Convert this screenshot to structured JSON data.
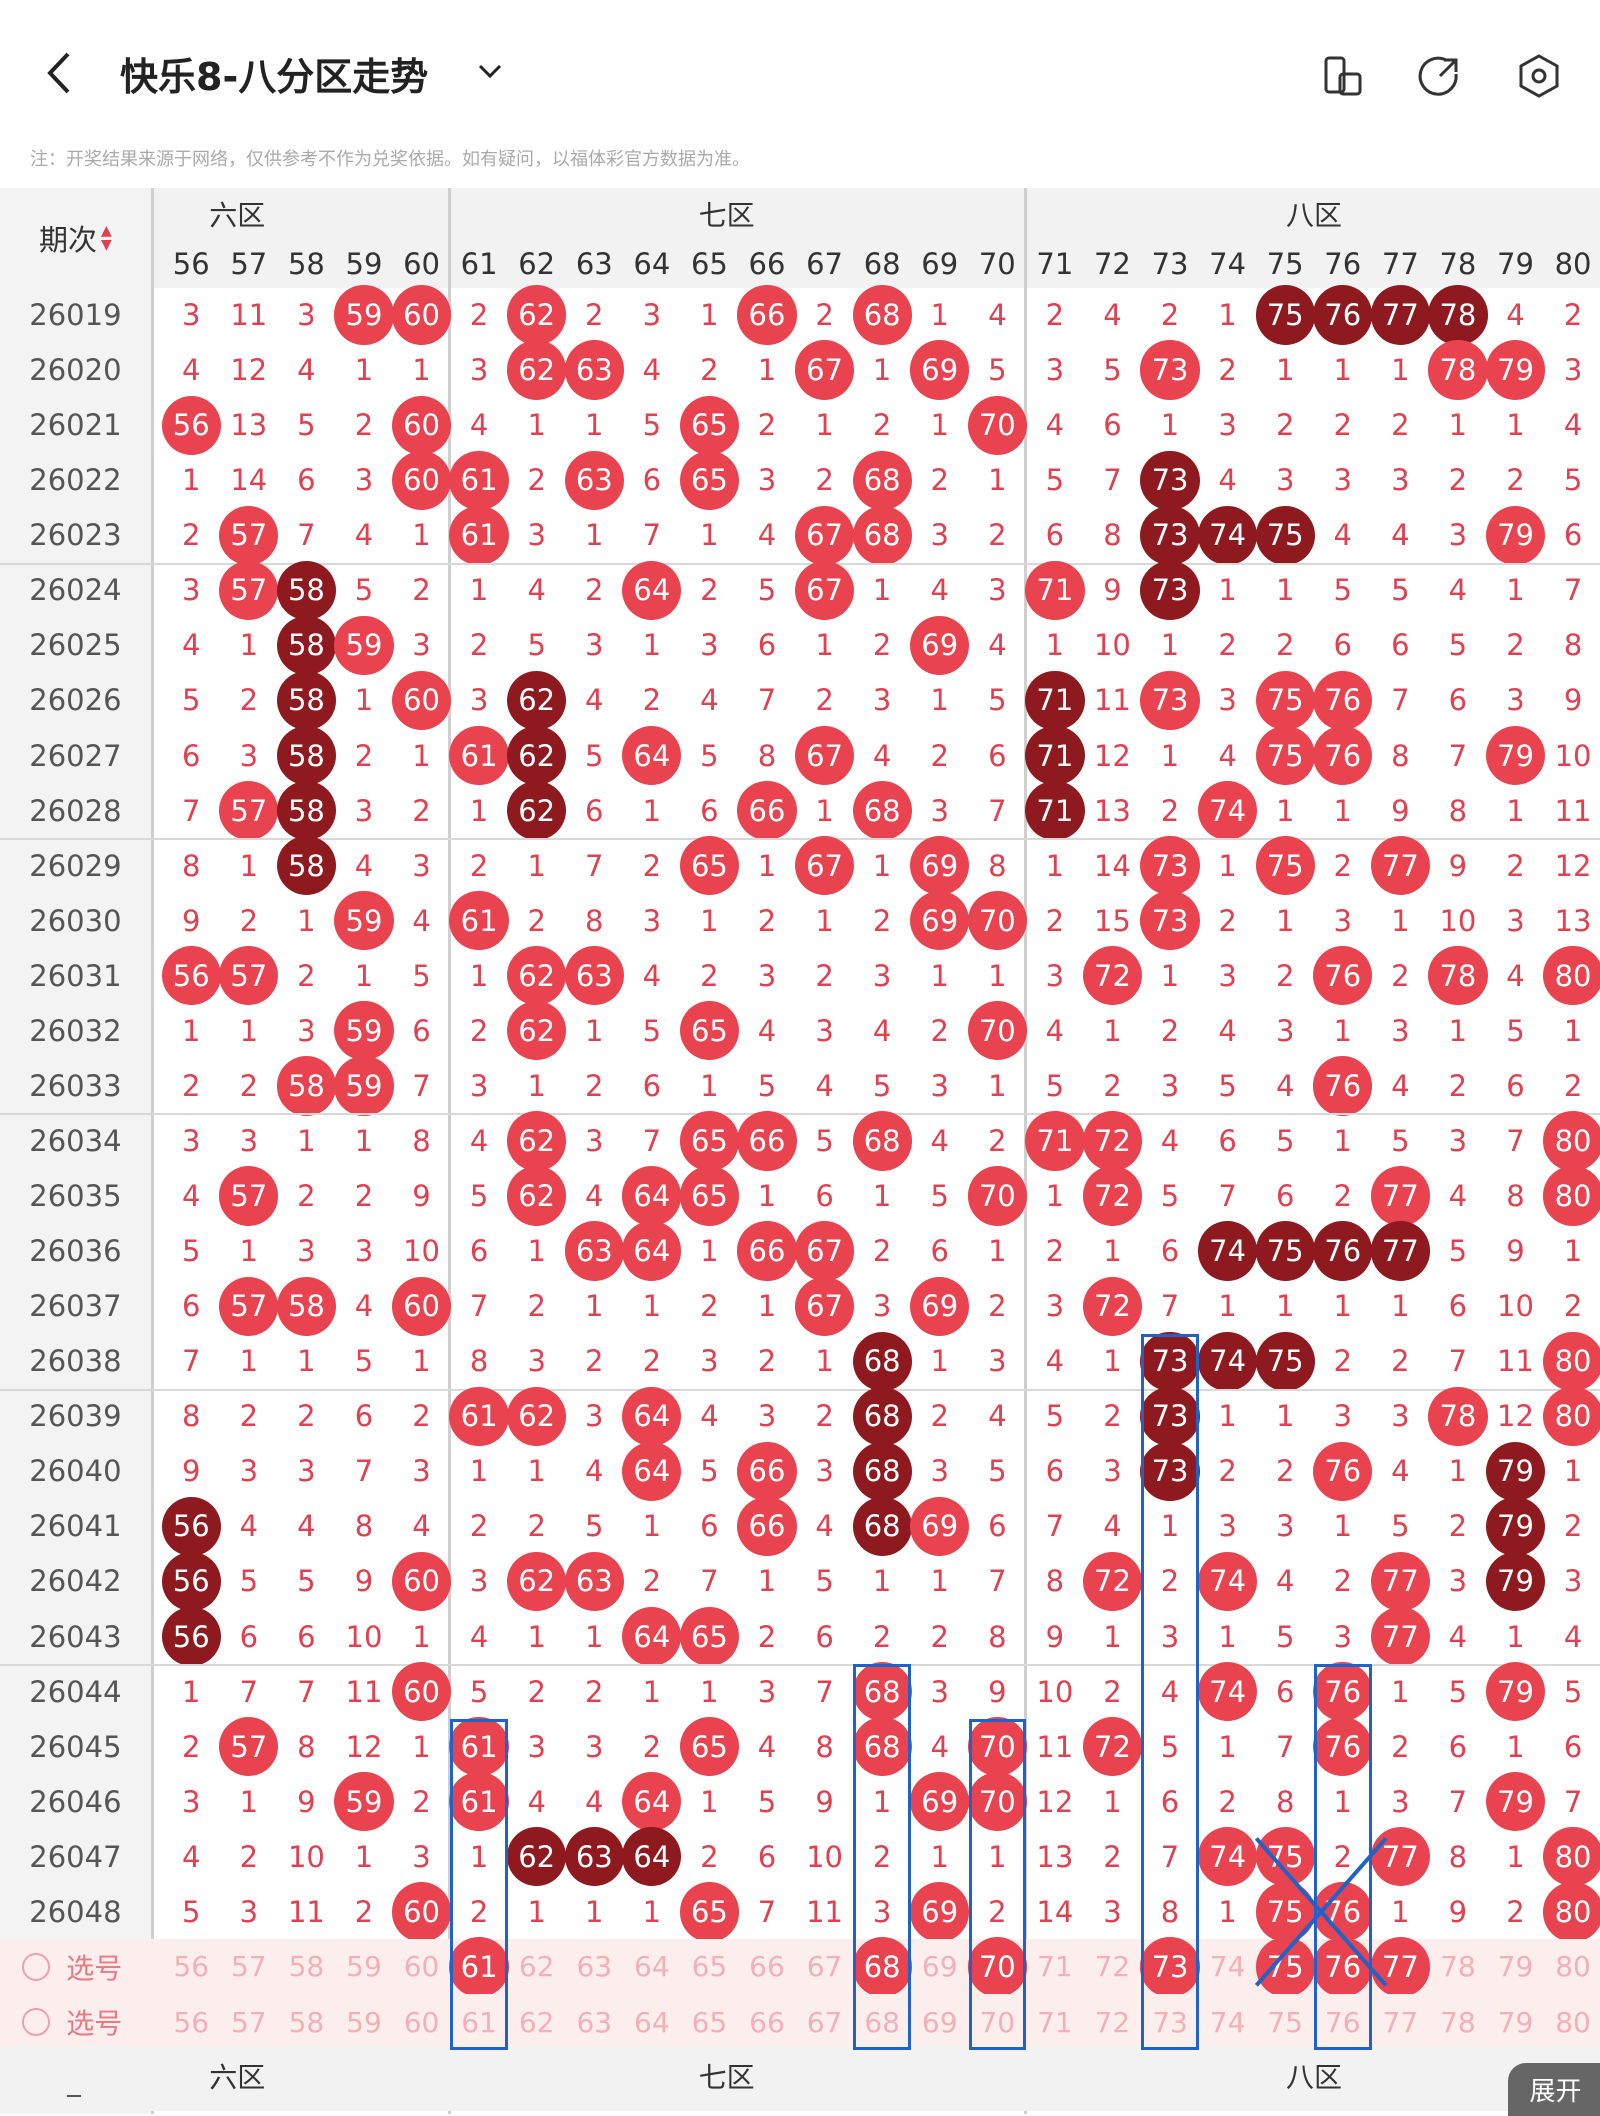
{
  "header": {
    "title": "快乐8-八分区走势",
    "notice": "注：开奖结果来源于网络，仅供参考不作为兑奖依据。如有疑问，以福体彩官方数据为准。"
  },
  "table": {
    "issue_header": "期次",
    "zones": [
      "六区",
      "七区",
      "八区"
    ],
    "zones_bottom": [
      "六区",
      "七区",
      "八区"
    ],
    "columns": [
      56,
      57,
      58,
      59,
      60,
      61,
      62,
      63,
      64,
      65,
      66,
      67,
      68,
      69,
      70,
      71,
      72,
      73,
      74,
      75,
      76,
      77,
      78,
      79,
      80
    ],
    "rows": [
      {
        "issue": "26019",
        "vals": [
          "3",
          "11",
          "3",
          "59",
          "60",
          "2",
          "62",
          "2",
          "3",
          "1",
          "66",
          "2",
          "68",
          "1",
          "4",
          "2",
          "4",
          "2",
          "1",
          "75",
          "76",
          "77",
          "78",
          "4",
          "2"
        ]
      },
      {
        "issue": "26020",
        "vals": [
          "4",
          "12",
          "4",
          "1",
          "1",
          "3",
          "62",
          "63",
          "4",
          "2",
          "1",
          "67",
          "1",
          "69",
          "5",
          "3",
          "5",
          "73",
          "2",
          "1",
          "1",
          "1",
          "78",
          "79",
          "3"
        ]
      },
      {
        "issue": "26021",
        "vals": [
          "56",
          "13",
          "5",
          "2",
          "60",
          "4",
          "1",
          "1",
          "5",
          "65",
          "2",
          "1",
          "2",
          "1",
          "70",
          "4",
          "6",
          "1",
          "3",
          "2",
          "2",
          "2",
          "1",
          "1",
          "4"
        ]
      },
      {
        "issue": "26022",
        "vals": [
          "1",
          "14",
          "6",
          "3",
          "60",
          "61",
          "2",
          "63",
          "6",
          "65",
          "3",
          "2",
          "68",
          "2",
          "1",
          "5",
          "7",
          "73",
          "4",
          "3",
          "3",
          "3",
          "2",
          "2",
          "5"
        ]
      },
      {
        "issue": "26023",
        "vals": [
          "2",
          "57",
          "7",
          "4",
          "1",
          "61",
          "3",
          "1",
          "7",
          "1",
          "4",
          "67",
          "68",
          "3",
          "2",
          "6",
          "8",
          "73",
          "74",
          "75",
          "4",
          "4",
          "3",
          "79",
          "6"
        ]
      },
      {
        "issue": "26024",
        "vals": [
          "3",
          "57",
          "58",
          "5",
          "2",
          "1",
          "4",
          "2",
          "64",
          "2",
          "5",
          "67",
          "1",
          "4",
          "3",
          "71",
          "9",
          "73",
          "1",
          "1",
          "5",
          "5",
          "4",
          "1",
          "7"
        ]
      },
      {
        "issue": "26025",
        "vals": [
          "4",
          "1",
          "58",
          "59",
          "3",
          "2",
          "5",
          "3",
          "1",
          "3",
          "6",
          "1",
          "2",
          "69",
          "4",
          "1",
          "10",
          "1",
          "2",
          "2",
          "6",
          "6",
          "5",
          "2",
          "8"
        ]
      },
      {
        "issue": "26026",
        "vals": [
          "5",
          "2",
          "58",
          "1",
          "60",
          "3",
          "62",
          "4",
          "2",
          "4",
          "7",
          "2",
          "3",
          "1",
          "5",
          "71",
          "11",
          "73",
          "3",
          "75",
          "76",
          "7",
          "6",
          "3",
          "9"
        ]
      },
      {
        "issue": "26027",
        "vals": [
          "6",
          "3",
          "58",
          "2",
          "1",
          "61",
          "62",
          "5",
          "64",
          "5",
          "8",
          "67",
          "4",
          "2",
          "6",
          "71",
          "12",
          "1",
          "4",
          "75",
          "76",
          "8",
          "7",
          "79",
          "10"
        ]
      },
      {
        "issue": "26028",
        "vals": [
          "7",
          "57",
          "58",
          "3",
          "2",
          "1",
          "62",
          "6",
          "1",
          "6",
          "66",
          "1",
          "68",
          "3",
          "7",
          "71",
          "13",
          "2",
          "74",
          "1",
          "1",
          "9",
          "8",
          "1",
          "11"
        ]
      },
      {
        "issue": "26029",
        "vals": [
          "8",
          "1",
          "58",
          "4",
          "3",
          "2",
          "1",
          "7",
          "2",
          "65",
          "1",
          "67",
          "1",
          "69",
          "8",
          "1",
          "14",
          "73",
          "1",
          "75",
          "2",
          "77",
          "9",
          "2",
          "12"
        ]
      },
      {
        "issue": "26030",
        "vals": [
          "9",
          "2",
          "1",
          "59",
          "4",
          "61",
          "2",
          "8",
          "3",
          "1",
          "2",
          "1",
          "2",
          "69",
          "70",
          "2",
          "15",
          "73",
          "2",
          "1",
          "3",
          "1",
          "10",
          "3",
          "13"
        ]
      },
      {
        "issue": "26031",
        "vals": [
          "56",
          "57",
          "2",
          "1",
          "5",
          "1",
          "62",
          "63",
          "4",
          "2",
          "3",
          "2",
          "3",
          "1",
          "1",
          "3",
          "72",
          "1",
          "3",
          "2",
          "76",
          "2",
          "78",
          "4",
          "80"
        ]
      },
      {
        "issue": "26032",
        "vals": [
          "1",
          "1",
          "3",
          "59",
          "6",
          "2",
          "62",
          "1",
          "5",
          "65",
          "4",
          "3",
          "4",
          "2",
          "70",
          "4",
          "1",
          "2",
          "4",
          "3",
          "1",
          "3",
          "1",
          "5",
          "1"
        ]
      },
      {
        "issue": "26033",
        "vals": [
          "2",
          "2",
          "58",
          "59",
          "7",
          "3",
          "1",
          "2",
          "6",
          "1",
          "5",
          "4",
          "5",
          "3",
          "1",
          "5",
          "2",
          "3",
          "5",
          "4",
          "76",
          "4",
          "2",
          "6",
          "2"
        ]
      },
      {
        "issue": "26034",
        "vals": [
          "3",
          "3",
          "1",
          "1",
          "8",
          "4",
          "62",
          "3",
          "7",
          "65",
          "66",
          "5",
          "68",
          "4",
          "2",
          "71",
          "72",
          "4",
          "6",
          "5",
          "1",
          "5",
          "3",
          "7",
          "80"
        ]
      },
      {
        "issue": "26035",
        "vals": [
          "4",
          "57",
          "2",
          "2",
          "9",
          "5",
          "62",
          "4",
          "64",
          "65",
          "1",
          "6",
          "1",
          "5",
          "70",
          "1",
          "72",
          "5",
          "7",
          "6",
          "2",
          "77",
          "4",
          "8",
          "80"
        ]
      },
      {
        "issue": "26036",
        "vals": [
          "5",
          "1",
          "3",
          "3",
          "10",
          "6",
          "1",
          "63",
          "64",
          "1",
          "66",
          "67",
          "2",
          "6",
          "1",
          "2",
          "1",
          "6",
          "74",
          "75",
          "76",
          "77",
          "5",
          "9",
          "1"
        ]
      },
      {
        "issue": "26037",
        "vals": [
          "6",
          "57",
          "58",
          "4",
          "60",
          "7",
          "2",
          "1",
          "1",
          "2",
          "1",
          "67",
          "3",
          "69",
          "2",
          "3",
          "72",
          "7",
          "1",
          "1",
          "1",
          "1",
          "6",
          "10",
          "2"
        ]
      },
      {
        "issue": "26038",
        "vals": [
          "7",
          "1",
          "1",
          "5",
          "1",
          "8",
          "3",
          "2",
          "2",
          "3",
          "2",
          "1",
          "68",
          "1",
          "3",
          "4",
          "1",
          "73",
          "74",
          "75",
          "2",
          "2",
          "7",
          "11",
          "80"
        ]
      },
      {
        "issue": "26039",
        "vals": [
          "8",
          "2",
          "2",
          "6",
          "2",
          "61",
          "62",
          "3",
          "64",
          "4",
          "3",
          "2",
          "68",
          "2",
          "4",
          "5",
          "2",
          "73",
          "1",
          "1",
          "3",
          "3",
          "78",
          "12",
          "80"
        ]
      },
      {
        "issue": "26040",
        "vals": [
          "9",
          "3",
          "3",
          "7",
          "3",
          "1",
          "1",
          "4",
          "64",
          "5",
          "66",
          "3",
          "68",
          "3",
          "5",
          "6",
          "3",
          "73",
          "2",
          "2",
          "76",
          "4",
          "1",
          "79",
          "1"
        ]
      },
      {
        "issue": "26041",
        "vals": [
          "56",
          "4",
          "4",
          "8",
          "4",
          "2",
          "2",
          "5",
          "1",
          "6",
          "66",
          "4",
          "68",
          "69",
          "6",
          "7",
          "4",
          "1",
          "3",
          "3",
          "1",
          "5",
          "2",
          "79",
          "2"
        ]
      },
      {
        "issue": "26042",
        "vals": [
          "56",
          "5",
          "5",
          "9",
          "60",
          "3",
          "62",
          "63",
          "2",
          "7",
          "1",
          "5",
          "1",
          "1",
          "7",
          "8",
          "72",
          "2",
          "74",
          "4",
          "2",
          "77",
          "3",
          "79",
          "3"
        ]
      },
      {
        "issue": "26043",
        "vals": [
          "56",
          "6",
          "6",
          "10",
          "1",
          "4",
          "1",
          "1",
          "64",
          "65",
          "2",
          "6",
          "2",
          "2",
          "8",
          "9",
          "1",
          "3",
          "1",
          "5",
          "3",
          "77",
          "4",
          "1",
          "4"
        ]
      },
      {
        "issue": "26044",
        "vals": [
          "1",
          "7",
          "7",
          "11",
          "60",
          "5",
          "2",
          "2",
          "1",
          "1",
          "3",
          "7",
          "68",
          "3",
          "9",
          "10",
          "2",
          "4",
          "74",
          "6",
          "76",
          "1",
          "5",
          "79",
          "5"
        ]
      },
      {
        "issue": "26045",
        "vals": [
          "2",
          "57",
          "8",
          "12",
          "1",
          "61",
          "3",
          "3",
          "2",
          "65",
          "4",
          "8",
          "68",
          "4",
          "70",
          "11",
          "72",
          "5",
          "1",
          "7",
          "76",
          "2",
          "6",
          "1",
          "6"
        ]
      },
      {
        "issue": "26046",
        "vals": [
          "3",
          "1",
          "9",
          "59",
          "2",
          "61",
          "4",
          "4",
          "64",
          "1",
          "5",
          "9",
          "1",
          "69",
          "70",
          "12",
          "1",
          "6",
          "2",
          "8",
          "1",
          "3",
          "7",
          "79",
          "7"
        ]
      },
      {
        "issue": "26047",
        "vals": [
          "4",
          "2",
          "10",
          "1",
          "3",
          "1",
          "62",
          "63",
          "64",
          "2",
          "6",
          "10",
          "2",
          "1",
          "1",
          "13",
          "2",
          "7",
          "74",
          "75",
          "2",
          "77",
          "8",
          "1",
          "80"
        ]
      },
      {
        "issue": "26048",
        "vals": [
          "5",
          "3",
          "11",
          "2",
          "60",
          "2",
          "1",
          "1",
          "1",
          "65",
          "7",
          "11",
          "3",
          "69",
          "2",
          "14",
          "3",
          "8",
          "1",
          "75",
          "76",
          "1",
          "9",
          "2",
          "80"
        ]
      }
    ],
    "pick_rows": [
      {
        "label": "选号",
        "selected": [
          61,
          68,
          70,
          73,
          75,
          76,
          77
        ]
      },
      {
        "label": "选号",
        "selected": []
      }
    ],
    "expand_label": "展开",
    "dark_balls": [
      "26019:75",
      "26019:76",
      "26019:77",
      "26019:78",
      "26022:73",
      "26023:73",
      "26023:74",
      "26023:75",
      "26024:73",
      "26024:58",
      "26025:58",
      "26026:58",
      "26026:62",
      "26026:71",
      "26027:58",
      "26027:62",
      "26027:71",
      "26028:58",
      "26028:62",
      "26028:71",
      "26029:58",
      "26036:74",
      "26036:75",
      "26036:76",
      "26036:77",
      "26038:68",
      "26038:73",
      "26038:74",
      "26038:75",
      "26039:68",
      "26039:73",
      "26040:68",
      "26040:73",
      "26040:79",
      "26041:56",
      "26041:68",
      "26041:79",
      "26042:56",
      "26042:79",
      "26043:56",
      "26047:62",
      "26047:63",
      "26047:64"
    ],
    "colors": {
      "ball": "#e8434f",
      "dark": "#8e1a1f",
      "highlight_box": "#1f63c9",
      "pick_bg": "#fdeeee"
    }
  }
}
